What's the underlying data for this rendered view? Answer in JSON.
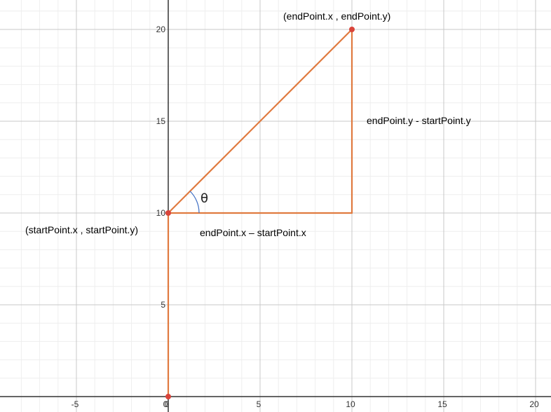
{
  "chart_data": {
    "type": "scatter",
    "title": "",
    "xlabel": "",
    "ylabel": "",
    "xlim": [
      -8.8,
      20.6
    ],
    "ylim": [
      -0.8,
      21.5
    ],
    "grid": true,
    "x_ticks": [
      "-5",
      "0",
      "5",
      "10",
      "15",
      "20"
    ],
    "x_tick_values": [
      -5,
      0,
      5,
      10,
      15,
      20
    ],
    "y_ticks": [
      "5",
      "10",
      "15",
      "20"
    ],
    "y_tick_values": [
      5,
      10,
      15,
      20
    ],
    "points": [
      {
        "x": 0,
        "y": 0
      },
      {
        "x": 0,
        "y": 10
      },
      {
        "x": 10,
        "y": 20
      }
    ],
    "segments": [
      {
        "from": [
          0,
          0
        ],
        "to": [
          0,
          10
        ]
      },
      {
        "from": [
          0,
          10
        ],
        "to": [
          10,
          20
        ]
      },
      {
        "from": [
          0,
          10
        ],
        "to": [
          10,
          10
        ]
      },
      {
        "from": [
          10,
          10
        ],
        "to": [
          10,
          20
        ]
      }
    ],
    "annotations": {
      "end_point": "(endPoint.x , endPoint.y)",
      "start_point": "(startPoint.x , startPoint.y)",
      "delta_y": "endPoint.y  - startPoint.y",
      "delta_x": "endPoint.x – startPoint.x",
      "angle": "θ"
    },
    "colors": {
      "line": "#e07a3f",
      "point": "#d9443a",
      "arc": "#3f6fc4",
      "grid_major": "#c8c8c8",
      "grid_minor": "#eeeeee",
      "axis": "#333333"
    }
  }
}
